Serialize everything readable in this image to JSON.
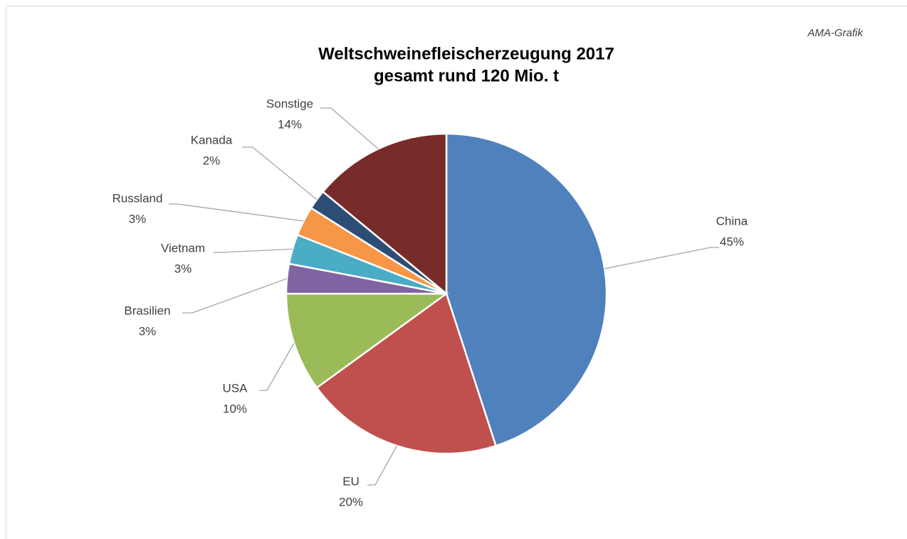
{
  "chart_data": {
    "type": "pie",
    "title": "Weltschweinefleischerzeugung 2017",
    "subtitle": "gesamt rund 120 Mio. t",
    "annotation": "AMA-Grafik",
    "categories": [
      "China",
      "EU",
      "USA",
      "Brasilien",
      "Vietnam",
      "Russland",
      "Kanada",
      "Sonstige"
    ],
    "values": [
      45,
      20,
      10,
      3,
      3,
      3,
      2,
      14
    ],
    "value_labels": [
      "45%",
      "20%",
      "10%",
      "3%",
      "3%",
      "3%",
      "2%",
      "14%"
    ],
    "colors": [
      "#4f81bd",
      "#c0504d",
      "#9bbb59",
      "#8064a2",
      "#4bacc6",
      "#f79646",
      "#2c4d75",
      "#772c2a"
    ]
  }
}
